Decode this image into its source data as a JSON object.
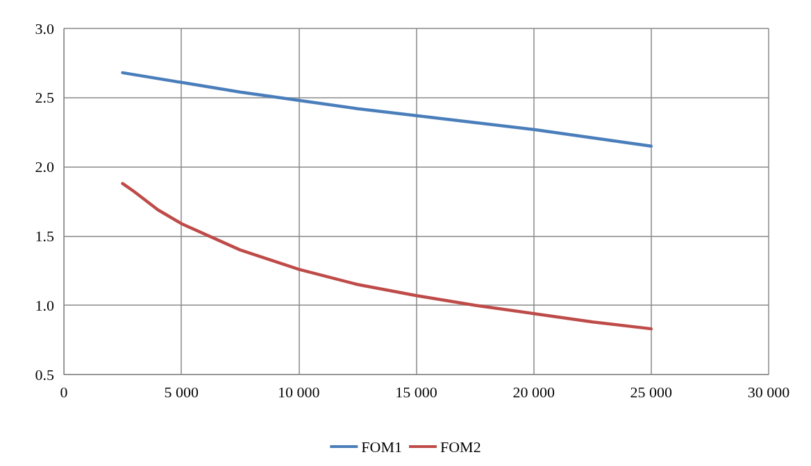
{
  "chart_data": {
    "type": "line",
    "xlim": [
      0,
      30000
    ],
    "xticks": [
      0,
      {
        "value": 5000,
        "label": "5 000"
      },
      {
        "value": 10000,
        "label": "10 000"
      },
      {
        "value": 15000,
        "label": "15 000"
      },
      {
        "value": 20000,
        "label": "20 000"
      },
      {
        "value": 25000,
        "label": "25 000"
      },
      {
        "value": 30000,
        "label": "30 000"
      }
    ],
    "ylim": [
      0.5,
      3
    ],
    "yticks": [
      {
        "value": 0.5,
        "label": "0.5"
      },
      {
        "value": 1,
        "label": "1.0"
      },
      {
        "value": 1.5,
        "label": "1.5"
      },
      {
        "value": 2,
        "label": "2.0"
      },
      {
        "value": 2.5,
        "label": "2.5"
      },
      {
        "value": 3,
        "label": "3.0"
      }
    ],
    "x": [
      2500,
      5000,
      7500,
      10000,
      12500,
      15000,
      17500,
      20000,
      22500,
      25000
    ],
    "series": [
      {
        "name": "FOM1",
        "color": "#4a7ebb",
        "values": [
          2.68,
          2.61,
          2.54,
          2.48,
          2.42,
          2.37,
          2.32,
          2.27,
          2.21,
          2.15
        ]
      },
      {
        "name": "FOM2",
        "color": "#be4b48",
        "x": [
          2500,
          3000,
          4000,
          5000,
          7500,
          10000,
          12500,
          15000,
          17500,
          20000,
          22500,
          25000
        ],
        "values": [
          1.88,
          1.82,
          1.69,
          1.59,
          1.4,
          1.26,
          1.15,
          1.07,
          1.0,
          0.94,
          0.88,
          0.83
        ]
      }
    ],
    "grid": true,
    "legend": "bottom",
    "marker": "none",
    "line_style": "solid"
  }
}
